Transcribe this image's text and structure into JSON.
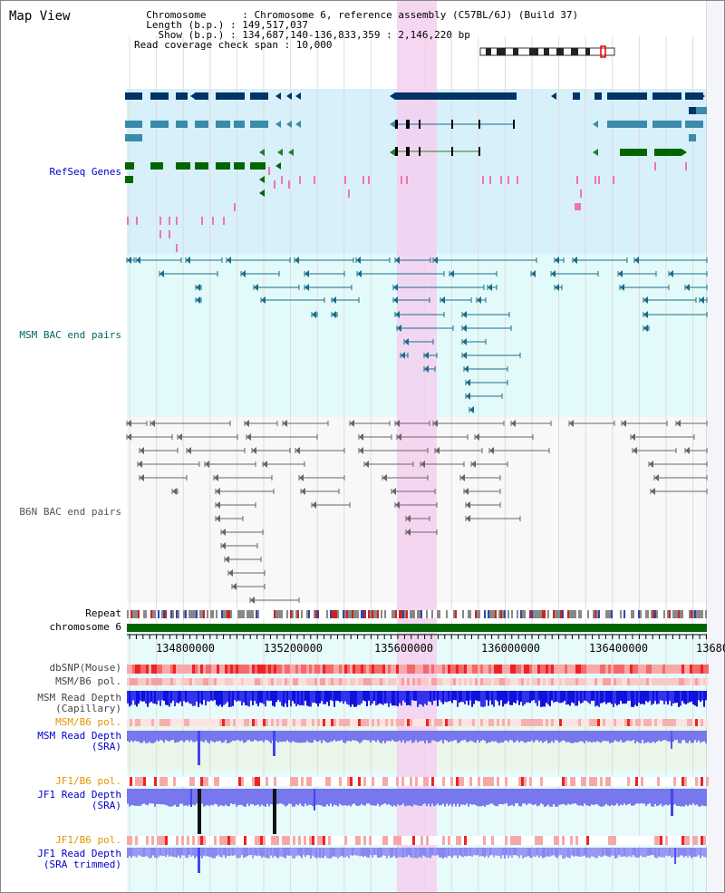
{
  "title": "Map View",
  "header": {
    "lines": [
      "  Chromosome      : Chromosome 6, reference assembly (C57BL/6J) (Build 37)",
      "  Length (b.p.) : 149,517,037",
      "    Show (b.p.) : 134,687,140-136,833,359 : 2,146,220 bp",
      "Read coverage check span : 10,000"
    ]
  },
  "tracks": {
    "refseq": "RefSeq Genes",
    "msm_bac": "MSM BAC end pairs",
    "b6n_bac": "B6N BAC end pairs",
    "repeat": "Repeat",
    "chromosome": "chromosome 6",
    "dbsnp": "dbSNP(Mouse)",
    "msm_b6_pol_1": "MSM/B6 pol.",
    "msm_depth_cap_1": "MSM Read Depth",
    "msm_depth_cap_2": "(Capillary)",
    "msm_b6_pol_2": "MSM/B6 pol.",
    "msm_depth_sra_1": "MSM Read Depth",
    "msm_depth_sra_2": "(SRA)",
    "jf1_b6_pol_1": "JF1/B6 pol.",
    "jf1_depth_sra_1": "JF1 Read Depth",
    "jf1_depth_sra_2": "(SRA)",
    "jf1_b6_pol_2": "JF1/B6 pol.",
    "jf1_depth_trim_1": "JF1 Read Depth",
    "jf1_depth_trim_2": "(SRA trimmed)"
  },
  "axis": {
    "ticks": [
      "134800000",
      "135200000",
      "135600000",
      "136000000",
      "136400000",
      "13680"
    ]
  },
  "colors": {
    "label_blue": "#0000cc",
    "label_dark": "#000000",
    "label_orange": "#e69500",
    "highlight": "#f5d0f0",
    "refseq_bg": "#d8f0fa",
    "msm_bg": "#e3fafa",
    "b6n_bg": "#f8f8f8",
    "gene_dark": "#003366",
    "gene_mid": "#3a8aaa",
    "gene_green": "#006600",
    "bac_teal": "#1a6d8a",
    "bac_gray": "#666666",
    "chromosome": "#006600"
  }
}
